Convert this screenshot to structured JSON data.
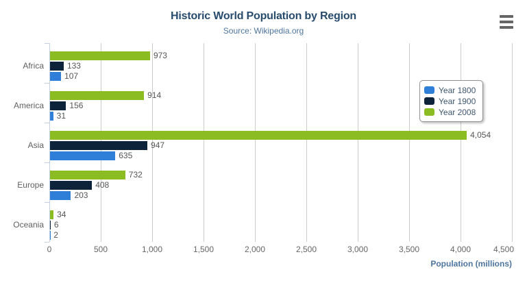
{
  "title": "Historic World Population by Region",
  "subtitle": "Source: Wikipedia.org",
  "context_menu": {
    "icon": "hamburger-icon"
  },
  "colors": {
    "title": "#274b6d",
    "subtitle": "#4d759e",
    "axis_line": "#c0d0e0",
    "gridline": "#cccccc",
    "tick_label": "#666666",
    "category_label": "#606060",
    "data_label": "#555555",
    "legend_text": "#3e576f",
    "legend_border": "#909090",
    "axis_title": "#4d759e",
    "menu_icon": "#666666"
  },
  "chart_data": {
    "type": "bar",
    "title": "Historic World Population by Region",
    "subtitle": "Source: Wikipedia.org",
    "categories": [
      "Africa",
      "America",
      "Asia",
      "Europe",
      "Oceania"
    ],
    "series": [
      {
        "name": "Year 1800",
        "color": "#2f7ed8",
        "values": [
          107,
          31,
          635,
          203,
          2
        ]
      },
      {
        "name": "Year 1900",
        "color": "#0d233a",
        "values": [
          133,
          156,
          947,
          408,
          6
        ]
      },
      {
        "name": "Year 2008",
        "color": "#8bbc21",
        "values": [
          973,
          914,
          4054,
          732,
          34
        ]
      }
    ],
    "bar_order_top_to_bottom": [
      "Year 2008",
      "Year 1900",
      "Year 1800"
    ],
    "xlabel": "Population (millions)",
    "ylabel": "",
    "xlim": [
      0,
      4500
    ],
    "xticks": [
      0,
      500,
      1000,
      1500,
      2000,
      2500,
      3000,
      3500,
      4000,
      4500
    ],
    "grid": true,
    "data_labels": true,
    "legend_position": "right-inside",
    "legend_entries": [
      "Year 1800",
      "Year 1900",
      "Year 2008"
    ]
  }
}
